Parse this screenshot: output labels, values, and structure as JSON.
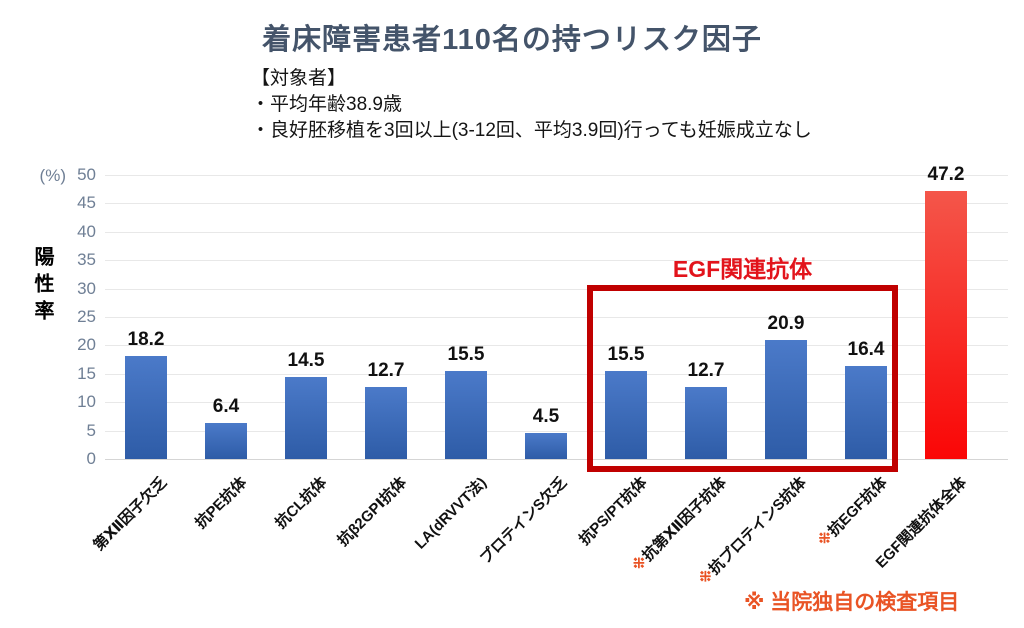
{
  "page": {
    "title": "着床障害患者110名の持つリスク因子"
  },
  "subject": {
    "heading": "【対象者】",
    "lines": [
      "・平均年齢38.9歳",
      "・良好胚移植を3回以上(3-12回、平均3.9回)行っても妊娠成立なし"
    ]
  },
  "chart_data": {
    "type": "bar",
    "title": "着床障害患者110名の持つリスク因子",
    "ylabel": "陽性率",
    "unit_label": "(%)",
    "ylim": [
      0,
      50
    ],
    "ytick_step": 5,
    "grid": true,
    "legend": "none",
    "categories": [
      "第Ⅻ因子欠乏",
      "抗PE抗体",
      "抗CL抗体",
      "抗β2GPⅠ抗体",
      "LA(dRVVT法)",
      "プロテインS欠乏",
      "抗PS/PT抗体",
      "抗第Ⅻ因子抗体",
      "抗プロテインS抗体",
      "抗EGF抗体",
      "EGF関連抗体全体"
    ],
    "values": [
      18.2,
      6.4,
      14.5,
      12.7,
      15.5,
      4.5,
      15.5,
      12.7,
      20.9,
      16.4,
      47.2
    ],
    "marked": [
      false,
      false,
      false,
      false,
      false,
      false,
      false,
      true,
      true,
      true,
      false
    ],
    "marker_symbol": "※",
    "total_index": 10,
    "bar_colors": {
      "default": [
        "#4b7ac9",
        "#2e5ca7"
      ],
      "total": [
        "#f4564a",
        "#fa0606"
      ]
    },
    "highlight": {
      "label": "EGF関連抗体",
      "from_index": 6,
      "to_index": 9
    }
  },
  "footnote": "※ 当院独自の検査項目",
  "colors": {
    "title": "#44546a",
    "axis_text": "#6f7f95",
    "gridline": "#e8e8e8",
    "highlight_box_border": "#c00000",
    "highlight_label": "#e2131b",
    "footnote": "#e95425",
    "marker": "#e95425"
  }
}
